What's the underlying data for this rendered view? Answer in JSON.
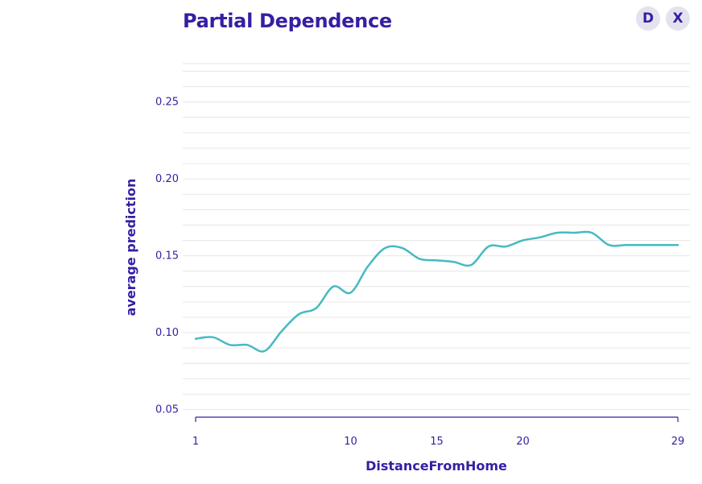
{
  "header": {
    "title": "Partial Dependence",
    "buttons": [
      {
        "label": "D"
      },
      {
        "label": "X"
      }
    ]
  },
  "colors": {
    "text": "#371ea3",
    "line": "#46bac2",
    "grid": "#e6e6e6",
    "axis": "#371ea3",
    "button_bg": "#e4e2ee"
  },
  "chart_data": {
    "type": "line",
    "title": "Partial Dependence",
    "xlabel": "DistanceFromHome",
    "ylabel": "average prediction",
    "xlim": [
      1,
      29
    ],
    "ylim": [
      0.045,
      0.275
    ],
    "xticks": [
      1,
      10,
      15,
      20,
      29
    ],
    "yticks": [
      0.05,
      0.1,
      0.15,
      0.2,
      0.25
    ],
    "ytick_labels": [
      "0.05",
      "0.10",
      "0.15",
      "0.20",
      "0.25"
    ],
    "grid": true,
    "series": [
      {
        "x": [
          1,
          2,
          3,
          4,
          5,
          6,
          7,
          8,
          9,
          10,
          11,
          12,
          13,
          14,
          15,
          16,
          17,
          18,
          19,
          20,
          21,
          22,
          23,
          24,
          25,
          26,
          27,
          28,
          29
        ],
        "y": [
          0.096,
          0.097,
          0.092,
          0.092,
          0.088,
          0.101,
          0.112,
          0.116,
          0.13,
          0.126,
          0.143,
          0.155,
          0.155,
          0.148,
          0.147,
          0.146,
          0.144,
          0.156,
          0.156,
          0.16,
          0.162,
          0.165,
          0.165,
          0.165,
          0.157,
          0.157,
          0.157,
          0.157,
          0.157
        ]
      }
    ]
  }
}
